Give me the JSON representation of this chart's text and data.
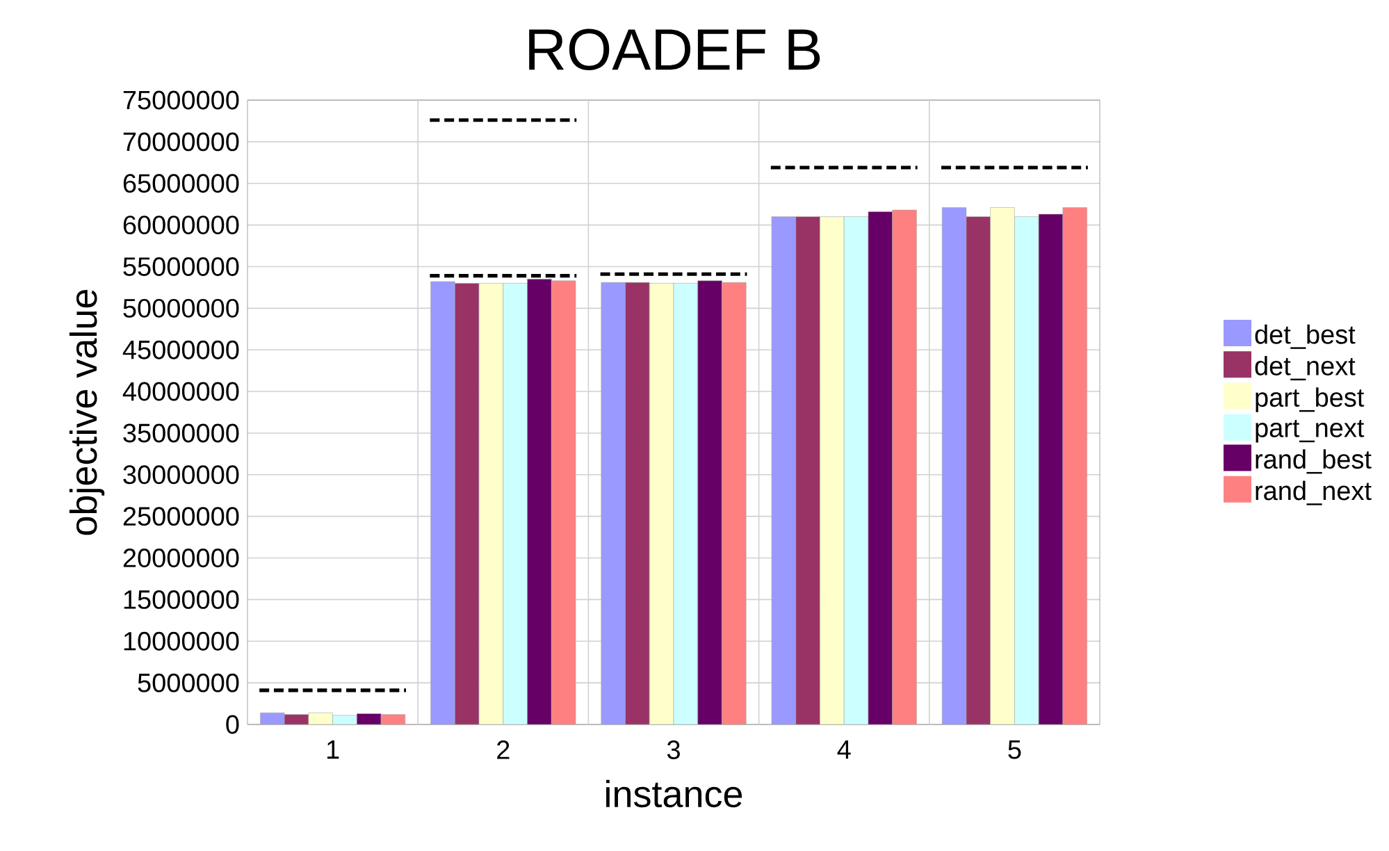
{
  "chart_data": {
    "type": "bar",
    "title": "ROADEF B",
    "xlabel": "instance",
    "ylabel": "objective value",
    "x": [
      1,
      2,
      3,
      4,
      5
    ],
    "series": [
      {
        "name": "det_best",
        "color": "#9999ff",
        "values": [
          1400000,
          53200000,
          53100000,
          61000000,
          62100000
        ]
      },
      {
        "name": "det_next",
        "color": "#993366",
        "values": [
          1200000,
          53000000,
          53100000,
          61000000,
          61000000
        ]
      },
      {
        "name": "part_best",
        "color": "#ffffcc",
        "values": [
          1400000,
          53000000,
          53000000,
          61000000,
          62100000
        ]
      },
      {
        "name": "part_next",
        "color": "#ccffff",
        "values": [
          1100000,
          53000000,
          53000000,
          61000000,
          61000000
        ]
      },
      {
        "name": "rand_best",
        "color": "#660066",
        "values": [
          1300000,
          53500000,
          53300000,
          61600000,
          61300000
        ]
      },
      {
        "name": "rand_next",
        "color": "#ff8080",
        "values": [
          1200000,
          53300000,
          53100000,
          61800000,
          62100000
        ]
      },
      {
        "type": "line",
        "line_style": "dashed",
        "color": "#000000",
        "x": [
          0.57,
          1.43
        ],
        "values": [
          4100000,
          4100000
        ]
      },
      {
        "type": "line",
        "line_style": "dashed",
        "color": "#000000",
        "x": [
          1.57,
          2.43
        ],
        "values": [
          72600000,
          72600000
        ]
      },
      {
        "type": "line",
        "line_style": "dashed",
        "color": "#000000",
        "x": [
          1.57,
          2.43
        ],
        "values": [
          53900000,
          53900000
        ]
      },
      {
        "type": "line",
        "line_style": "dashed",
        "color": "#000000",
        "x": [
          2.57,
          3.43
        ],
        "values": [
          54100000,
          54100000
        ]
      },
      {
        "type": "line",
        "line_style": "dashed",
        "color": "#000000",
        "x": [
          3.57,
          4.43
        ],
        "values": [
          66900000,
          66900000
        ]
      },
      {
        "type": "line",
        "line_style": "dashed",
        "color": "#000000",
        "x": [
          4.57,
          5.43
        ],
        "values": [
          66900000,
          66900000
        ]
      }
    ],
    "xlim": [
      0.5,
      5.5
    ],
    "xticks": [
      1,
      2,
      3,
      4,
      5
    ],
    "ylim": [
      0,
      75000000
    ],
    "yticks": [
      0,
      5000000,
      10000000,
      15000000,
      20000000,
      25000000,
      30000000,
      35000000,
      40000000,
      45000000,
      50000000,
      55000000,
      60000000,
      65000000,
      70000000,
      75000000
    ],
    "grid": true,
    "legend": "right"
  }
}
